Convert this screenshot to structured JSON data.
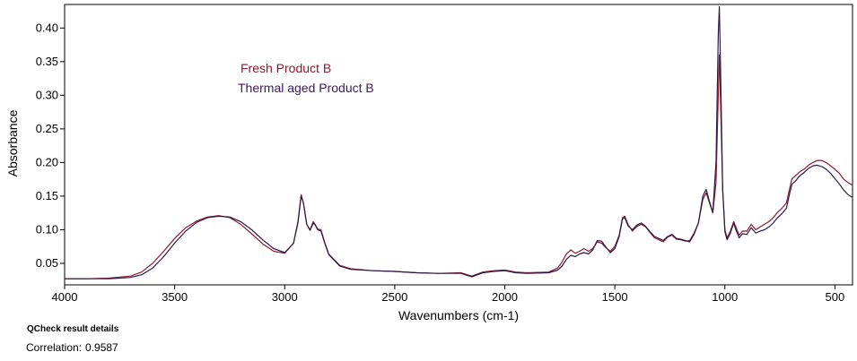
{
  "chart_data": {
    "type": "line",
    "xlabel": "Wavenumbers (cm-1)",
    "ylabel": "Absorbance",
    "xlim": [
      4000,
      420
    ],
    "ylim": [
      0.018,
      0.435
    ],
    "x_reversed": true,
    "grid": false,
    "legend_placement": "top-left",
    "x_ticks": [
      4000,
      3500,
      3000,
      2500,
      2000,
      1500,
      1000,
      500
    ],
    "x_tick_labels": [
      "4000",
      "3500",
      "3000",
      "2500",
      "2000",
      "1500",
      "1000",
      "500"
    ],
    "y_ticks": [
      0.05,
      0.1,
      0.15,
      0.2,
      0.25,
      0.3,
      0.35,
      0.4
    ],
    "y_tick_labels": [
      "0.05",
      "0.10",
      "0.15",
      "0.20",
      "0.25",
      "0.30",
      "0.35",
      "0.40"
    ],
    "series": [
      {
        "name": "Fresh Product B",
        "color": "#8b1a2e",
        "points": [
          [
            4000,
            0.027
          ],
          [
            3900,
            0.027
          ],
          [
            3800,
            0.028
          ],
          [
            3700,
            0.031
          ],
          [
            3650,
            0.037
          ],
          [
            3600,
            0.05
          ],
          [
            3550,
            0.068
          ],
          [
            3500,
            0.087
          ],
          [
            3450,
            0.103
          ],
          [
            3400,
            0.113
          ],
          [
            3350,
            0.119
          ],
          [
            3300,
            0.121
          ],
          [
            3250,
            0.118
          ],
          [
            3200,
            0.108
          ],
          [
            3150,
            0.094
          ],
          [
            3100,
            0.079
          ],
          [
            3050,
            0.068
          ],
          [
            3000,
            0.065
          ],
          [
            2960,
            0.08
          ],
          [
            2940,
            0.112
          ],
          [
            2925,
            0.152
          ],
          [
            2915,
            0.14
          ],
          [
            2900,
            0.108
          ],
          [
            2885,
            0.1
          ],
          [
            2870,
            0.112
          ],
          [
            2860,
            0.107
          ],
          [
            2850,
            0.101
          ],
          [
            2835,
            0.1
          ],
          [
            2820,
            0.083
          ],
          [
            2800,
            0.064
          ],
          [
            2750,
            0.047
          ],
          [
            2700,
            0.042
          ],
          [
            2600,
            0.039
          ],
          [
            2500,
            0.038
          ],
          [
            2400,
            0.036
          ],
          [
            2300,
            0.035
          ],
          [
            2200,
            0.036
          ],
          [
            2150,
            0.031
          ],
          [
            2100,
            0.037
          ],
          [
            2050,
            0.039
          ],
          [
            2000,
            0.04
          ],
          [
            1950,
            0.037
          ],
          [
            1900,
            0.036
          ],
          [
            1800,
            0.037
          ],
          [
            1760,
            0.043
          ],
          [
            1740,
            0.052
          ],
          [
            1720,
            0.064
          ],
          [
            1700,
            0.07
          ],
          [
            1680,
            0.065
          ],
          [
            1660,
            0.068
          ],
          [
            1640,
            0.072
          ],
          [
            1620,
            0.068
          ],
          [
            1600,
            0.072
          ],
          [
            1580,
            0.082
          ],
          [
            1560,
            0.08
          ],
          [
            1540,
            0.073
          ],
          [
            1520,
            0.068
          ],
          [
            1500,
            0.075
          ],
          [
            1480,
            0.092
          ],
          [
            1465,
            0.118
          ],
          [
            1455,
            0.12
          ],
          [
            1440,
            0.108
          ],
          [
            1420,
            0.098
          ],
          [
            1400,
            0.105
          ],
          [
            1380,
            0.108
          ],
          [
            1360,
            0.104
          ],
          [
            1340,
            0.096
          ],
          [
            1320,
            0.088
          ],
          [
            1300,
            0.085
          ],
          [
            1280,
            0.082
          ],
          [
            1260,
            0.089
          ],
          [
            1240,
            0.092
          ],
          [
            1220,
            0.086
          ],
          [
            1200,
            0.085
          ],
          [
            1180,
            0.083
          ],
          [
            1160,
            0.084
          ],
          [
            1140,
            0.095
          ],
          [
            1120,
            0.11
          ],
          [
            1100,
            0.145
          ],
          [
            1085,
            0.155
          ],
          [
            1070,
            0.14
          ],
          [
            1055,
            0.125
          ],
          [
            1040,
            0.17
          ],
          [
            1030,
            0.3
          ],
          [
            1025,
            0.36
          ],
          [
            1020,
            0.3
          ],
          [
            1010,
            0.16
          ],
          [
            1000,
            0.1
          ],
          [
            990,
            0.088
          ],
          [
            975,
            0.098
          ],
          [
            960,
            0.112
          ],
          [
            950,
            0.104
          ],
          [
            935,
            0.092
          ],
          [
            920,
            0.098
          ],
          [
            900,
            0.098
          ],
          [
            880,
            0.108
          ],
          [
            860,
            0.1
          ],
          [
            840,
            0.104
          ],
          [
            820,
            0.108
          ],
          [
            800,
            0.112
          ],
          [
            780,
            0.118
          ],
          [
            760,
            0.126
          ],
          [
            740,
            0.132
          ],
          [
            720,
            0.14
          ],
          [
            705,
            0.162
          ],
          [
            695,
            0.176
          ],
          [
            680,
            0.18
          ],
          [
            660,
            0.186
          ],
          [
            640,
            0.19
          ],
          [
            620,
            0.196
          ],
          [
            600,
            0.2
          ],
          [
            580,
            0.203
          ],
          [
            560,
            0.203
          ],
          [
            540,
            0.2
          ],
          [
            520,
            0.195
          ],
          [
            500,
            0.19
          ],
          [
            480,
            0.184
          ],
          [
            460,
            0.175
          ],
          [
            440,
            0.17
          ],
          [
            420,
            0.166
          ]
        ]
      },
      {
        "name": "Thermal aged Product B",
        "color": "#2e1a47",
        "points": [
          [
            4000,
            0.027
          ],
          [
            3900,
            0.027
          ],
          [
            3800,
            0.027
          ],
          [
            3700,
            0.029
          ],
          [
            3650,
            0.033
          ],
          [
            3600,
            0.043
          ],
          [
            3550,
            0.06
          ],
          [
            3500,
            0.08
          ],
          [
            3450,
            0.098
          ],
          [
            3400,
            0.111
          ],
          [
            3350,
            0.118
          ],
          [
            3300,
            0.12
          ],
          [
            3250,
            0.119
          ],
          [
            3200,
            0.112
          ],
          [
            3150,
            0.1
          ],
          [
            3100,
            0.085
          ],
          [
            3050,
            0.072
          ],
          [
            3000,
            0.066
          ],
          [
            2960,
            0.08
          ],
          [
            2940,
            0.11
          ],
          [
            2925,
            0.15
          ],
          [
            2915,
            0.14
          ],
          [
            2900,
            0.108
          ],
          [
            2885,
            0.099
          ],
          [
            2870,
            0.11
          ],
          [
            2860,
            0.106
          ],
          [
            2850,
            0.1
          ],
          [
            2835,
            0.098
          ],
          [
            2820,
            0.082
          ],
          [
            2800,
            0.063
          ],
          [
            2750,
            0.046
          ],
          [
            2700,
            0.041
          ],
          [
            2600,
            0.039
          ],
          [
            2500,
            0.038
          ],
          [
            2400,
            0.036
          ],
          [
            2300,
            0.035
          ],
          [
            2200,
            0.035
          ],
          [
            2150,
            0.03
          ],
          [
            2100,
            0.036
          ],
          [
            2050,
            0.038
          ],
          [
            2000,
            0.039
          ],
          [
            1950,
            0.036
          ],
          [
            1900,
            0.035
          ],
          [
            1800,
            0.036
          ],
          [
            1760,
            0.04
          ],
          [
            1740,
            0.046
          ],
          [
            1720,
            0.056
          ],
          [
            1700,
            0.062
          ],
          [
            1680,
            0.06
          ],
          [
            1660,
            0.064
          ],
          [
            1640,
            0.066
          ],
          [
            1620,
            0.064
          ],
          [
            1600,
            0.07
          ],
          [
            1580,
            0.084
          ],
          [
            1560,
            0.083
          ],
          [
            1540,
            0.074
          ],
          [
            1520,
            0.066
          ],
          [
            1500,
            0.072
          ],
          [
            1480,
            0.09
          ],
          [
            1465,
            0.116
          ],
          [
            1455,
            0.118
          ],
          [
            1440,
            0.106
          ],
          [
            1420,
            0.1
          ],
          [
            1400,
            0.107
          ],
          [
            1380,
            0.11
          ],
          [
            1360,
            0.105
          ],
          [
            1340,
            0.097
          ],
          [
            1320,
            0.09
          ],
          [
            1300,
            0.087
          ],
          [
            1280,
            0.084
          ],
          [
            1260,
            0.09
          ],
          [
            1240,
            0.093
          ],
          [
            1220,
            0.087
          ],
          [
            1200,
            0.086
          ],
          [
            1180,
            0.084
          ],
          [
            1160,
            0.082
          ],
          [
            1140,
            0.093
          ],
          [
            1120,
            0.11
          ],
          [
            1100,
            0.15
          ],
          [
            1085,
            0.16
          ],
          [
            1070,
            0.142
          ],
          [
            1055,
            0.126
          ],
          [
            1040,
            0.2
          ],
          [
            1030,
            0.39
          ],
          [
            1025,
            0.432
          ],
          [
            1020,
            0.35
          ],
          [
            1010,
            0.16
          ],
          [
            1000,
            0.097
          ],
          [
            990,
            0.085
          ],
          [
            975,
            0.095
          ],
          [
            960,
            0.11
          ],
          [
            950,
            0.1
          ],
          [
            935,
            0.088
          ],
          [
            920,
            0.094
          ],
          [
            900,
            0.093
          ],
          [
            880,
            0.103
          ],
          [
            860,
            0.095
          ],
          [
            840,
            0.098
          ],
          [
            820,
            0.1
          ],
          [
            800,
            0.104
          ],
          [
            780,
            0.11
          ],
          [
            760,
            0.118
          ],
          [
            740,
            0.124
          ],
          [
            720,
            0.132
          ],
          [
            705,
            0.155
          ],
          [
            695,
            0.168
          ],
          [
            680,
            0.172
          ],
          [
            660,
            0.18
          ],
          [
            640,
            0.185
          ],
          [
            620,
            0.191
          ],
          [
            600,
            0.195
          ],
          [
            580,
            0.196
          ],
          [
            560,
            0.194
          ],
          [
            540,
            0.19
          ],
          [
            520,
            0.184
          ],
          [
            500,
            0.176
          ],
          [
            480,
            0.168
          ],
          [
            460,
            0.159
          ],
          [
            440,
            0.152
          ],
          [
            420,
            0.148
          ]
        ]
      }
    ]
  },
  "footer": {
    "title": "QCheck result details",
    "correlation_label": "Correlation:",
    "correlation_value": "0.9587"
  }
}
